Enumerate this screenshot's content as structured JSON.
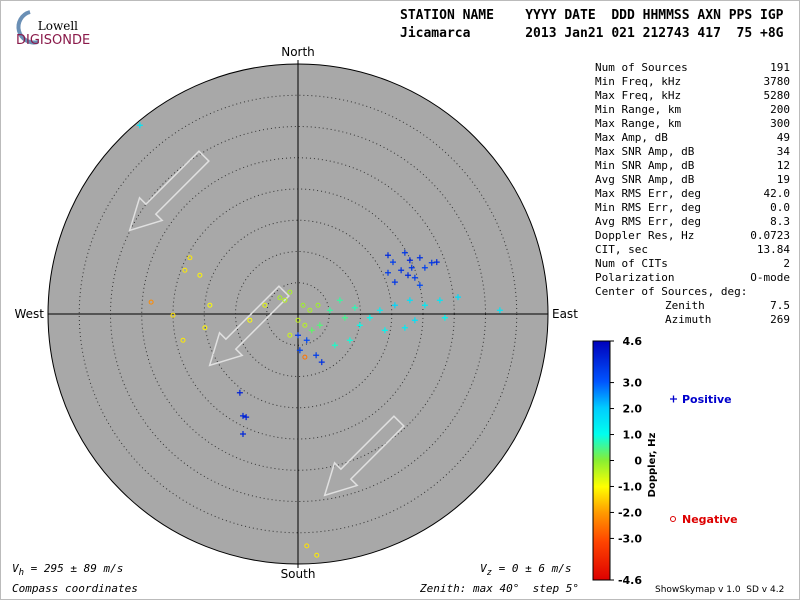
{
  "header": {
    "logo_top": "Lowell",
    "logo_bottom": "DIGISONDE",
    "row1": "STATION NAME    YYYY DATE  DDD HHMMSS AXN PPS IGP",
    "row2": "Jicamarca       2013 Jan21 021 212743 417  75 +8G"
  },
  "stats": {
    "rows": [
      [
        "Num of Sources",
        "191"
      ],
      [
        "Min Freq, kHz",
        "3780"
      ],
      [
        "Max Freq, kHz",
        "5280"
      ],
      [
        "Min Range, km",
        "200"
      ],
      [
        "Max Range, km",
        "300"
      ],
      [
        "Max Amp, dB",
        "49"
      ],
      [
        "Max SNR Amp, dB",
        "34"
      ],
      [
        "Min SNR Amp, dB",
        "12"
      ],
      [
        "Avg SNR Amp, dB",
        "19"
      ],
      [
        "Max RMS Err, deg",
        "42.0"
      ],
      [
        "Min RMS Err, deg",
        "0.0"
      ],
      [
        "Avg RMS Err, deg",
        "8.3"
      ],
      [
        "Doppler Res, Hz",
        "0.0723"
      ],
      [
        "CIT, sec",
        "13.84"
      ],
      [
        "Num of CITs",
        "2"
      ],
      [
        "Polarization",
        "O-mode"
      ]
    ],
    "center_title": "Center of Sources, deg:",
    "center_rows": [
      [
        "Zenith",
        "7.5"
      ],
      [
        "Azimuth",
        "269"
      ]
    ]
  },
  "chart_data": {
    "type": "skymap",
    "rmax": 40,
    "ring_step": 5,
    "compass": {
      "north": "North",
      "south": "South",
      "east": "East",
      "west": "West"
    },
    "series": [
      {
        "name": "Positive",
        "color": "#0000cc",
        "marker": "plus",
        "x": [
          14.4,
          17.1,
          15.2,
          17.9,
          19.5,
          21.4,
          22.2,
          14.4,
          16.5,
          18.2,
          20.3,
          17.6,
          18.7,
          19.5,
          15.5,
          -9.3,
          -8.8,
          -8.3,
          -8.8,
          0,
          0.3,
          2.9,
          3.8,
          1.4,
          17.9,
          20.3,
          22.7,
          23.5,
          18.7,
          15.5,
          13.1,
          11.5,
          9.9,
          8.3,
          25.6,
          32.3,
          13.9,
          17.1,
          5.1,
          7.5,
          3.5,
          6.7,
          9.1,
          2.2,
          5.9,
          -25.3
        ],
        "y": [
          9.4,
          9.8,
          8.3,
          8.6,
          9.0,
          8.2,
          8.3,
          6.6,
          7.0,
          7.4,
          7.4,
          6.2,
          5.8,
          4.6,
          5.1,
          -12.6,
          -16.3,
          -16.5,
          -19.2,
          -3.4,
          -5.8,
          -6.6,
          -7.7,
          -4.2,
          2.2,
          1.4,
          2.2,
          -0.6,
          -1.0,
          1.4,
          0.6,
          -0.6,
          -1.8,
          -4.2,
          2.7,
          0.6,
          -2.6,
          -2.2,
          0.6,
          -0.6,
          -1.8,
          2.2,
          1.0,
          -2.6,
          -5.0,
          30.2
        ],
        "doppler": [
          3.8,
          3.6,
          3.5,
          3.9,
          3.7,
          3.6,
          3.8,
          3.5,
          3.7,
          3.6,
          3.4,
          3.8,
          3.5,
          3.3,
          3.6,
          4.0,
          3.9,
          4.0,
          3.9,
          3.6,
          3.4,
          3.5,
          3.7,
          3.3,
          1.6,
          1.4,
          1.5,
          1.2,
          1.6,
          1.8,
          1.3,
          1.1,
          1.0,
          0.9,
          1.7,
          1.5,
          1.2,
          1.4,
          0.6,
          0.5,
          0.4,
          0.6,
          0.7,
          0.3,
          0.8,
          1.5
        ]
      },
      {
        "name": "Negative",
        "color": "#dd0000",
        "marker": "circle",
        "x": [
          -1.3,
          -2.1,
          0.8,
          1.9,
          3.2,
          0,
          1.1,
          -1.3,
          -2.9,
          -5.3,
          -17.3,
          -15.7,
          -18.1,
          -14.1,
          -20,
          -14.9,
          -18.4,
          -7.7,
          -23.5,
          1.1,
          1.4,
          3.0
        ],
        "y": [
          3.5,
          2.2,
          1.4,
          0.6,
          1.4,
          -1.0,
          -1.8,
          -3.4,
          2.6,
          1.4,
          9.0,
          6.2,
          7.0,
          1.4,
          -0.2,
          -2.2,
          -4.2,
          -1.0,
          1.9,
          -6.9,
          -37.1,
          -38.6
        ],
        "doppler": [
          -0.3,
          -0.4,
          -0.2,
          -0.3,
          -0.2,
          -0.5,
          -0.4,
          -0.6,
          -0.3,
          -0.8,
          -1.2,
          -1.1,
          -1.2,
          -1.0,
          -1.3,
          -1.1,
          -1.2,
          -1.0,
          -2.2,
          -2.5,
          -1.3,
          -1.2
        ]
      }
    ],
    "color_axis": {
      "label": "Doppler, Hz",
      "clim": [
        -4.6,
        4.6
      ],
      "cticks": [
        4.6,
        {
          "value": 3,
          "label": "3.0"
        },
        {
          "value": 2,
          "label": "2.0"
        },
        {
          "value": 1,
          "label": "1.0"
        },
        0,
        {
          "value": -1,
          "label": "-1.0"
        },
        {
          "value": -2,
          "label": "-2.0"
        },
        {
          "value": -3,
          "label": "-3.0"
        },
        -4.6
      ]
    }
  },
  "footer": {
    "vh_symbol": "V",
    "vh_sub": "h",
    "vh_text": " = 295 ± 89 m/s",
    "vz_symbol": "V",
    "vz_sub": "z",
    "vz_text": " = 0 ± 6 m/s",
    "coords": "Compass coordinates",
    "zenith": "Zenith: max 40°  step 5°",
    "version": "ShowSkymap v 1.0  SD v 4.2"
  }
}
